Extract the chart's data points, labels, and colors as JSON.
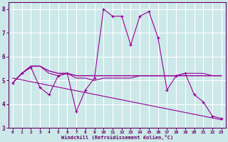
{
  "xlabel": "Windchill (Refroidissement éolien,°C)",
  "bg_color": "#cce8e8",
  "grid_color": "#ffffff",
  "line_color": "#990099",
  "spine_color": "#660066",
  "xlim": [
    -0.5,
    23.5
  ],
  "ylim": [
    3,
    8.3
  ],
  "yticks": [
    3,
    4,
    5,
    6,
    7,
    8
  ],
  "xticks": [
    0,
    1,
    2,
    3,
    4,
    5,
    6,
    7,
    8,
    9,
    10,
    11,
    12,
    13,
    14,
    15,
    16,
    17,
    18,
    19,
    20,
    21,
    22,
    23
  ],
  "series1_x": [
    0,
    1,
    2,
    3,
    4,
    5,
    6,
    7,
    8,
    9,
    10,
    11,
    12,
    13,
    14,
    15,
    16,
    17,
    18,
    19,
    20,
    21,
    22,
    23
  ],
  "series1_y": [
    4.9,
    5.3,
    5.55,
    4.7,
    4.4,
    5.2,
    5.3,
    3.7,
    4.6,
    5.1,
    8.0,
    7.7,
    7.7,
    6.5,
    7.7,
    7.9,
    6.8,
    4.6,
    5.2,
    5.3,
    4.4,
    4.1,
    3.5,
    3.4
  ],
  "series2_x": [
    0,
    1,
    2,
    3,
    4,
    5,
    6,
    7,
    8,
    9,
    10,
    11,
    12,
    13,
    14,
    15,
    16,
    17,
    18,
    19,
    20,
    21,
    22,
    23
  ],
  "series2_y": [
    4.9,
    5.3,
    5.6,
    5.6,
    5.4,
    5.3,
    5.3,
    5.2,
    5.2,
    5.2,
    5.2,
    5.2,
    5.2,
    5.2,
    5.2,
    5.2,
    5.2,
    5.2,
    5.2,
    5.2,
    5.2,
    5.2,
    5.2,
    5.2
  ],
  "series3_x": [
    0,
    1,
    2,
    3,
    4,
    5,
    6,
    7,
    8,
    9,
    10,
    11,
    12,
    13,
    14,
    15,
    16,
    17,
    18,
    19,
    20,
    21,
    22,
    23
  ],
  "series3_y": [
    4.9,
    5.3,
    5.6,
    5.6,
    5.3,
    5.2,
    5.3,
    5.1,
    5.1,
    5.0,
    5.1,
    5.1,
    5.1,
    5.1,
    5.2,
    5.2,
    5.2,
    5.2,
    5.2,
    5.3,
    5.3,
    5.3,
    5.2,
    5.2
  ],
  "series4_x": [
    0,
    23
  ],
  "series4_y": [
    5.1,
    3.35
  ]
}
